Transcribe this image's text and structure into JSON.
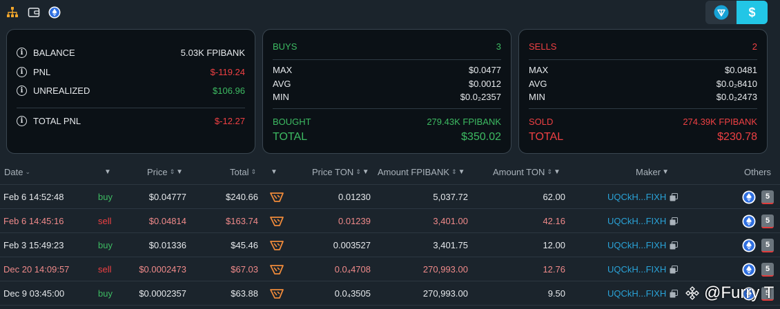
{
  "toolbar": {
    "icons": [
      "sitemap-icon",
      "wallet-icon",
      "ethereum-logo-icon"
    ],
    "currency_toggle": {
      "options": [
        "ton-icon",
        "dollar-icon"
      ],
      "selected": "USD",
      "usd_label": "$"
    }
  },
  "summary": {
    "balance_label": "BALANCE",
    "balance_value": "5.03K FPIBANK",
    "pnl_label": "PNL",
    "pnl_value": "$-119.24",
    "unrealized_label": "UNREALIZED",
    "unrealized_value": "$106.96",
    "total_pnl_label": "TOTAL PNL",
    "total_pnl_value": "$-12.27"
  },
  "buys": {
    "title": "BUYS",
    "count": "3",
    "max_label": "MAX",
    "max_value": "$0.0477",
    "avg_label": "AVG",
    "avg_value": "$0.0012",
    "min_label": "MIN",
    "min_value": "$0.0₂2357",
    "amount_label": "BOUGHT",
    "amount_value": "279.43K FPIBANK",
    "total_label": "TOTAL",
    "total_value": "$350.02"
  },
  "sells": {
    "title": "SELLS",
    "count": "2",
    "max_label": "MAX",
    "max_value": "$0.0481",
    "avg_label": "AVG",
    "avg_value": "$0.0₂8410",
    "min_label": "MIN",
    "min_value": "$0.0₂2473",
    "amount_label": "SOLD",
    "amount_value": "274.39K FPIBANK",
    "total_label": "TOTAL",
    "total_value": "$230.78"
  },
  "table": {
    "headers": {
      "date": "Date",
      "price": "Price",
      "total": "Total",
      "price_ton": "Price TON",
      "amount_token": "Amount FPIBANK",
      "amount_ton": "Amount TON",
      "maker": "Maker",
      "others": "Others"
    },
    "rows": [
      {
        "date": "Feb 6 14:52:48",
        "type": "buy",
        "price": "$0.04777",
        "total": "$240.66",
        "price_ton": "0.01230",
        "amount_token": "5,037.72",
        "amount_ton": "62.00",
        "maker": "UQCkH...FIXH",
        "badge": "5"
      },
      {
        "date": "Feb 6 14:45:16",
        "type": "sell",
        "price": "$0.04814",
        "total": "$163.74",
        "price_ton": "0.01239",
        "amount_token": "3,401.00",
        "amount_ton": "42.16",
        "maker": "UQCkH...FIXH",
        "badge": "5"
      },
      {
        "date": "Feb 3 15:49:23",
        "type": "buy",
        "price": "$0.01336",
        "total": "$45.46",
        "price_ton": "0.003527",
        "amount_token": "3,401.75",
        "amount_ton": "12.00",
        "maker": "UQCkH...FIXH",
        "badge": "5"
      },
      {
        "date": "Dec 20 14:09:57",
        "type": "sell",
        "price": "$0.0002473",
        "total": "$67.03",
        "price_ton": "0.0₄4708",
        "amount_token": "270,993.00",
        "amount_ton": "12.76",
        "maker": "UQCkH...FIXH",
        "badge": "5"
      },
      {
        "date": "Dec 9 03:45:00",
        "type": "buy",
        "price": "$0.0002357",
        "total": "$63.88",
        "price_ton": "0.0₄3505",
        "amount_token": "270,993.00",
        "amount_ton": "9.50",
        "maker": "UQCkH...FIXH",
        "badge": "5"
      }
    ]
  },
  "watermark": {
    "text": "@Furry T"
  },
  "colors": {
    "buy": "#3dbb62",
    "sell": "#ef4043",
    "sell_row_text": "#f08a8a",
    "accent": "#22c6e6",
    "maker": "#2aa3d8"
  }
}
